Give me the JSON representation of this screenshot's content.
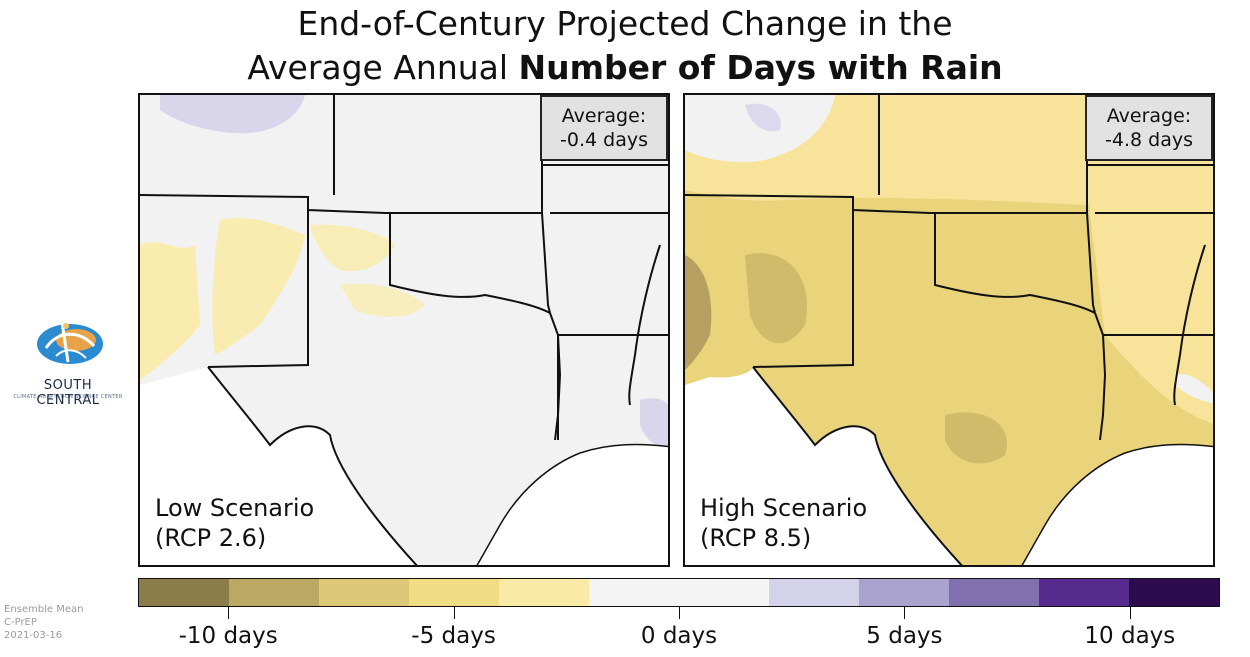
{
  "title": {
    "line1": "End-of-Century Projected Change in the",
    "line2_normal": "Average Annual ",
    "line2_bold": "Number of Days with Rain"
  },
  "panels": [
    {
      "average_label": "Average:",
      "average_value": "-0.4 days",
      "scenario_name": "Low Scenario",
      "scenario_code": "(RCP 2.6)"
    },
    {
      "average_label": "Average:",
      "average_value": "-4.8 days",
      "scenario_name": "High Scenario",
      "scenario_code": "(RCP 8.5)"
    }
  ],
  "logo": {
    "name": "SOUTH CENTRAL",
    "subtitle": "CLIMATE ADAPTATION SCIENCE CENTER"
  },
  "legend": {
    "colors": [
      "#8b7d4a",
      "#bba862",
      "#dcc877",
      "#f0dc85",
      "#f9eba6",
      "#f4f4f4",
      "#f4f4f4",
      "#d4d2e8",
      "#aba3cf",
      "#8070ae",
      "#562b8d",
      "#2d0b4f"
    ],
    "ticks": [
      {
        "value": -10,
        "label": "-10 days"
      },
      {
        "value": -5,
        "label": "-5 days"
      },
      {
        "value": 0,
        "label": "0 days"
      },
      {
        "value": 5,
        "label": "5 days"
      },
      {
        "value": 10,
        "label": "10 days"
      }
    ]
  },
  "footer": {
    "line1": "Ensemble Mean",
    "line2": "C-PrEP",
    "line3": "2021-03-16"
  },
  "map_colors": {
    "low_base": "#f2f2f2",
    "low_dry": "#f9eba6",
    "low_wet": "#d9d6ec",
    "high_base": "#e9d47c",
    "high_dark": "#cfbb6a",
    "high_darker": "#b5a062",
    "high_light": "#f7e49a",
    "high_neutral": "#f2f2f2",
    "high_wet": "#dcd9ee",
    "border": "#111111"
  }
}
